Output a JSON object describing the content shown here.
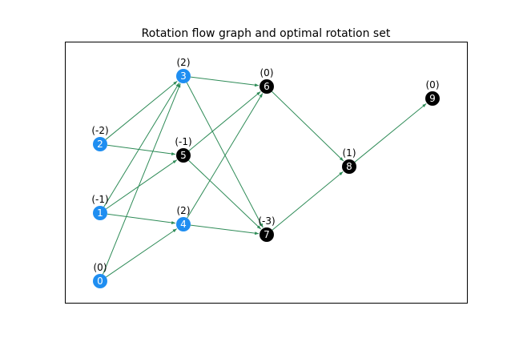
{
  "title": "Rotation flow graph and optimal rotation set",
  "colors": {
    "selected_node": "#1f8ef1",
    "unselected_node": "#000000",
    "edge": "#2e8b57",
    "frame": "#000000"
  },
  "nodes": [
    {
      "id": "0",
      "weight": "(0)",
      "selected": true
    },
    {
      "id": "1",
      "weight": "(-1)",
      "selected": true
    },
    {
      "id": "2",
      "weight": "(-2)",
      "selected": true
    },
    {
      "id": "3",
      "weight": "(2)",
      "selected": true
    },
    {
      "id": "4",
      "weight": "(2)",
      "selected": true
    },
    {
      "id": "5",
      "weight": "(-1)",
      "selected": false
    },
    {
      "id": "6",
      "weight": "(0)",
      "selected": false
    },
    {
      "id": "7",
      "weight": "(-3)",
      "selected": false
    },
    {
      "id": "8",
      "weight": "(1)",
      "selected": false
    },
    {
      "id": "9",
      "weight": "(0)",
      "selected": false
    }
  ],
  "edges": [
    [
      "2",
      "3"
    ],
    [
      "2",
      "5"
    ],
    [
      "1",
      "3"
    ],
    [
      "1",
      "5"
    ],
    [
      "1",
      "4"
    ],
    [
      "0",
      "3"
    ],
    [
      "0",
      "4"
    ],
    [
      "3",
      "6"
    ],
    [
      "3",
      "7"
    ],
    [
      "5",
      "6"
    ],
    [
      "5",
      "7"
    ],
    [
      "4",
      "6"
    ],
    [
      "4",
      "7"
    ],
    [
      "6",
      "8"
    ],
    [
      "7",
      "8"
    ],
    [
      "8",
      "9"
    ]
  ]
}
